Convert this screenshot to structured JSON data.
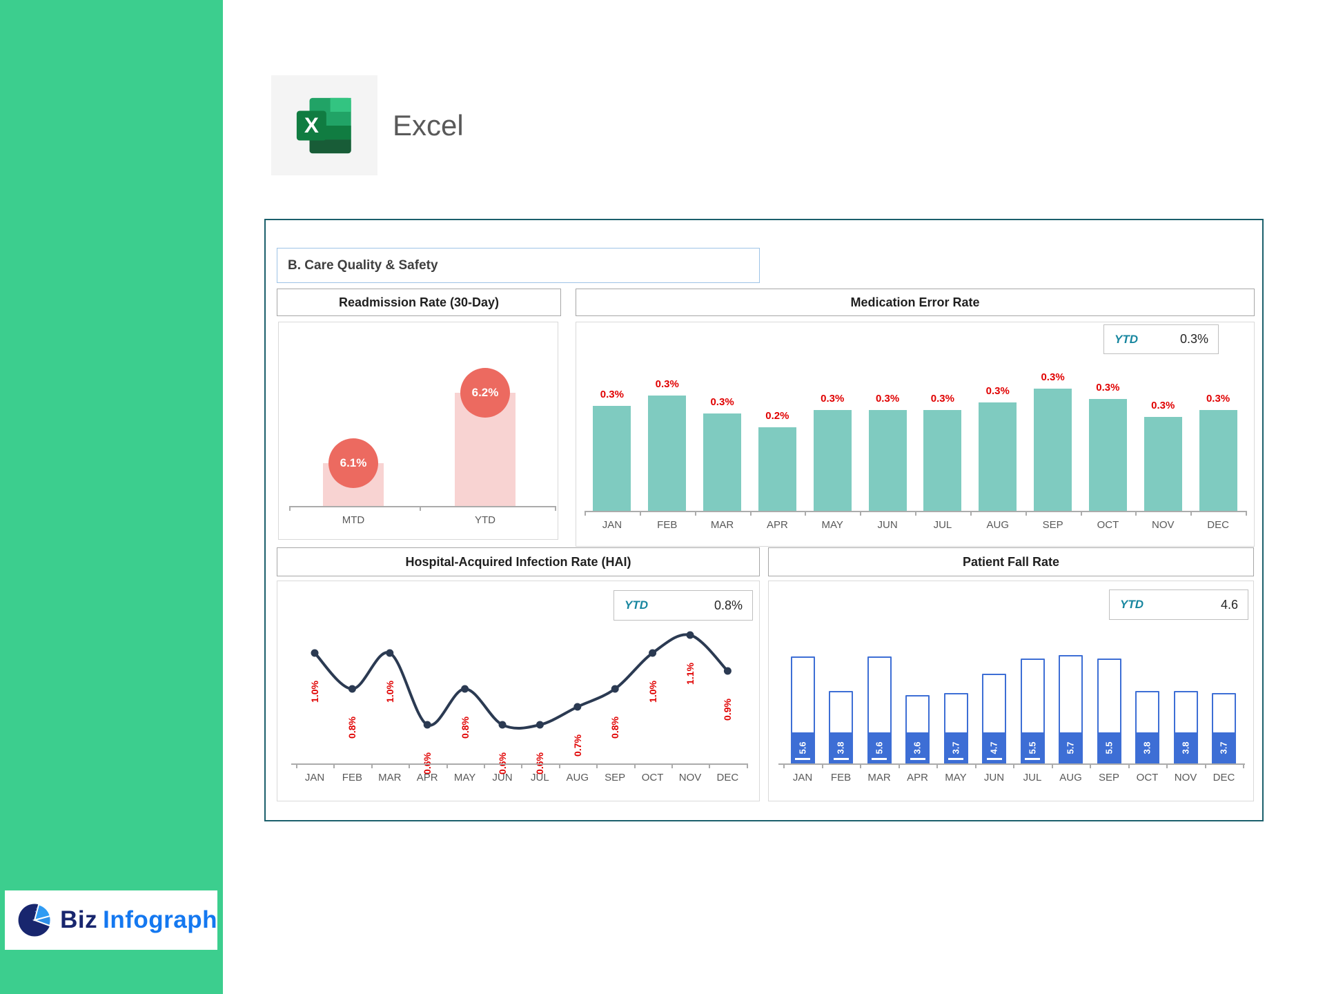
{
  "page": {
    "background": "#FFFFFF"
  },
  "colors": {
    "sidebar_green": "#3CCE8E",
    "dashboard_border_teal": "#1A5F6B",
    "ytd_teal": "#17869F",
    "data_label_red": "#E00000",
    "medication_bar_teal": "#7FCBC0",
    "readmission_bar_pink": "#F8D3D2",
    "readmission_bubble_red": "#EC6A60",
    "hai_line_navy": "#2B3A52",
    "fall_bar_blue": "#3D6ED5",
    "logo_navy": "#18266E",
    "logo_blue": "#1478F0",
    "excel_green": "#107C41"
  },
  "branding": {
    "app_label": "Excel",
    "logo": {
      "text_primary": "Biz",
      "text_secondary": "Infograph"
    }
  },
  "dashboard": {
    "section_title": "B. Care Quality & Safety"
  },
  "chart_data": [
    {
      "id": "readmission",
      "type": "bar",
      "title": "Readmission Rate (30-Day)",
      "categories": [
        "MTD",
        "YTD"
      ],
      "values": [
        6.1,
        6.2
      ],
      "labels": [
        "6.1%",
        "6.2%"
      ],
      "ylim": [
        6.04,
        6.3
      ],
      "bar_color": "#F8D3D2",
      "bubble_color": "#EC6A60",
      "grid": false,
      "legend": "none"
    },
    {
      "id": "medication_error",
      "type": "bar",
      "title": "Medication Error Rate",
      "ytd_label": "YTD",
      "ytd_value": "0.3%",
      "categories": [
        "JAN",
        "FEB",
        "MAR",
        "APR",
        "MAY",
        "JUN",
        "JUL",
        "AUG",
        "SEP",
        "OCT",
        "NOV",
        "DEC"
      ],
      "values": [
        0.3,
        0.33,
        0.28,
        0.24,
        0.29,
        0.29,
        0.29,
        0.31,
        0.35,
        0.32,
        0.27,
        0.29
      ],
      "labels": [
        "0.3%",
        "0.3%",
        "0.3%",
        "0.2%",
        "0.3%",
        "0.3%",
        "0.3%",
        "0.3%",
        "0.3%",
        "0.3%",
        "0.3%",
        "0.3%"
      ],
      "ylim": [
        0,
        0.4
      ],
      "bar_color": "#7FCBC0",
      "label_color": "#E00000",
      "grid": false,
      "legend": "none"
    },
    {
      "id": "hai",
      "type": "line",
      "title": "Hospital-Acquired Infection Rate (HAI)",
      "ytd_label": "YTD",
      "ytd_value": "0.8%",
      "categories": [
        "JAN",
        "FEB",
        "MAR",
        "APR",
        "MAY",
        "JUN",
        "JUL",
        "AUG",
        "SEP",
        "OCT",
        "NOV",
        "DEC"
      ],
      "values": [
        1.0,
        0.8,
        1.0,
        0.6,
        0.8,
        0.6,
        0.6,
        0.7,
        0.8,
        1.0,
        1.1,
        0.9
      ],
      "labels": [
        "1.0%",
        "0.8%",
        "1.0%",
        "0.6%",
        "0.8%",
        "0.6%",
        "0.6%",
        "0.7%",
        "0.8%",
        "1.0%",
        "1.1%",
        "0.9%"
      ],
      "ylim": [
        0.4,
        1.2
      ],
      "line_color": "#2B3A52",
      "marker": "circle",
      "label_color": "#E00000",
      "label_rotation": -90,
      "grid": false,
      "legend": "none"
    },
    {
      "id": "patient_fall",
      "type": "bar",
      "title": "Patient Fall Rate",
      "ytd_label": "YTD",
      "ytd_value": "4.6",
      "categories": [
        "JAN",
        "FEB",
        "MAR",
        "APR",
        "MAY",
        "JUN",
        "JUL",
        "AUG",
        "SEP",
        "OCT",
        "NOV",
        "DEC"
      ],
      "values": [
        5.6,
        3.8,
        5.6,
        3.6,
        3.7,
        4.7,
        5.5,
        5.7,
        5.5,
        3.8,
        3.8,
        3.7
      ],
      "labels": [
        "5.6",
        "3.8",
        "5.6",
        "3.6",
        "3.7",
        "4.7",
        "5.5",
        "5.7",
        "5.5",
        "3.8",
        "3.8",
        "3.7"
      ],
      "base_dash": [
        true,
        true,
        true,
        true,
        true,
        true,
        true,
        false,
        false,
        false,
        false,
        false
      ],
      "ylim": [
        0,
        6.5
      ],
      "bar_color": "#3D6ED5",
      "label_color": "#FFFFFF",
      "label_rotation": -90,
      "grid": false,
      "legend": "none"
    }
  ]
}
